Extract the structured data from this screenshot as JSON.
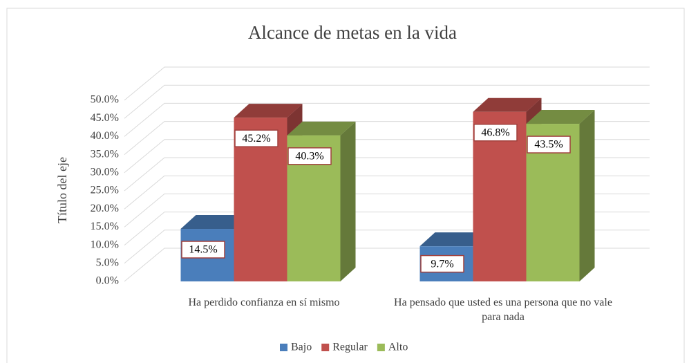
{
  "chart_data": {
    "type": "bar3d",
    "title": "Alcance de metas en la vida",
    "y_label": "Título del eje",
    "categories": [
      "Ha perdido confianza en sí mismo",
      "Ha pensado que usted es una persona que no vale para nada"
    ],
    "series": [
      {
        "name": "Bajo",
        "color": "#4a7ebb",
        "values": [
          14.5,
          9.7
        ],
        "value_labels": [
          "14.5%",
          "9.7%"
        ]
      },
      {
        "name": "Regular",
        "color": "#c0504d",
        "values": [
          45.2,
          46.8
        ],
        "value_labels": [
          "45.2%",
          "46.8%"
        ]
      },
      {
        "name": "Alto",
        "color": "#9bbb59",
        "values": [
          40.3,
          43.5
        ],
        "value_labels": [
          "40.3%",
          "43.5%"
        ]
      }
    ],
    "ylim": [
      0,
      50
    ],
    "yticks": [
      {
        "value": 0,
        "label": "0.0%"
      },
      {
        "value": 5,
        "label": "5.0%"
      },
      {
        "value": 10,
        "label": "10.0%"
      },
      {
        "value": 15,
        "label": "15.0%"
      },
      {
        "value": 20,
        "label": "20.0%"
      },
      {
        "value": 25,
        "label": "25.0%"
      },
      {
        "value": 30,
        "label": "30.0%"
      },
      {
        "value": 35,
        "label": "35.0%"
      },
      {
        "value": 40,
        "label": "40.0%"
      },
      {
        "value": 45,
        "label": "45.0%"
      },
      {
        "value": 50,
        "label": "50.0%"
      }
    ],
    "grid": true,
    "legend": "bottom"
  }
}
